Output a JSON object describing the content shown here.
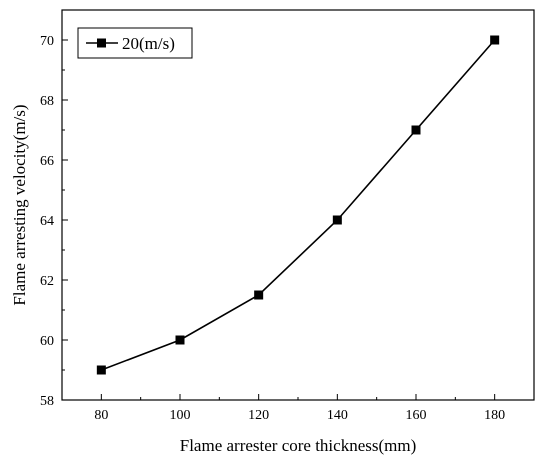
{
  "chart_data": {
    "type": "line",
    "title": "",
    "xlabel": "Flame arrester core thickness(mm)",
    "ylabel": "Flame arresting velocity(m/s)",
    "xlim": [
      70,
      190
    ],
    "ylim": [
      58,
      71
    ],
    "xticks": [
      80,
      100,
      120,
      140,
      160,
      180
    ],
    "yticks": [
      58,
      60,
      62,
      64,
      66,
      68,
      70
    ],
    "grid": false,
    "legend_position": "top-left",
    "series": [
      {
        "name": "20(m/s)",
        "marker": "square",
        "color": "#000000",
        "x": [
          80,
          100,
          120,
          140,
          160,
          180
        ],
        "y": [
          59,
          60,
          61.5,
          64,
          67,
          70
        ]
      }
    ]
  }
}
